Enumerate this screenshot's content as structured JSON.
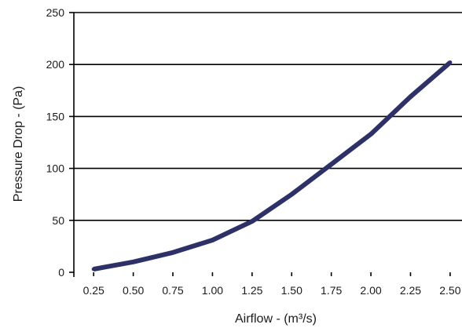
{
  "chart_data": {
    "type": "line",
    "title": "",
    "xlabel": "Airflow - (m³/s)",
    "ylabel": "Pressure Drop - (Pa)",
    "x_tick_labels": [
      "0.25",
      "0.50",
      "0.75",
      "1.00",
      "1.25",
      "1.50",
      "1.75",
      "2.00",
      "2.25",
      "2.50"
    ],
    "y_tick_labels": [
      "0",
      "50",
      "100",
      "150",
      "200",
      "250"
    ],
    "x_ticks": [
      0.25,
      0.5,
      0.75,
      1.0,
      1.25,
      1.5,
      1.75,
      2.0,
      2.25,
      2.5
    ],
    "y_ticks": [
      0,
      50,
      100,
      150,
      200,
      250
    ],
    "xlim": [
      0.125,
      2.575
    ],
    "ylim": [
      0,
      250
    ],
    "grid": "horizontal",
    "series": [
      {
        "color": "#2e3167",
        "x": [
          0.25,
          0.5,
          0.75,
          1.0,
          1.25,
          1.5,
          1.75,
          2.0,
          2.25,
          2.5
        ],
        "values": [
          3,
          10,
          19,
          31,
          49,
          75,
          104,
          133,
          169,
          202
        ]
      }
    ]
  }
}
